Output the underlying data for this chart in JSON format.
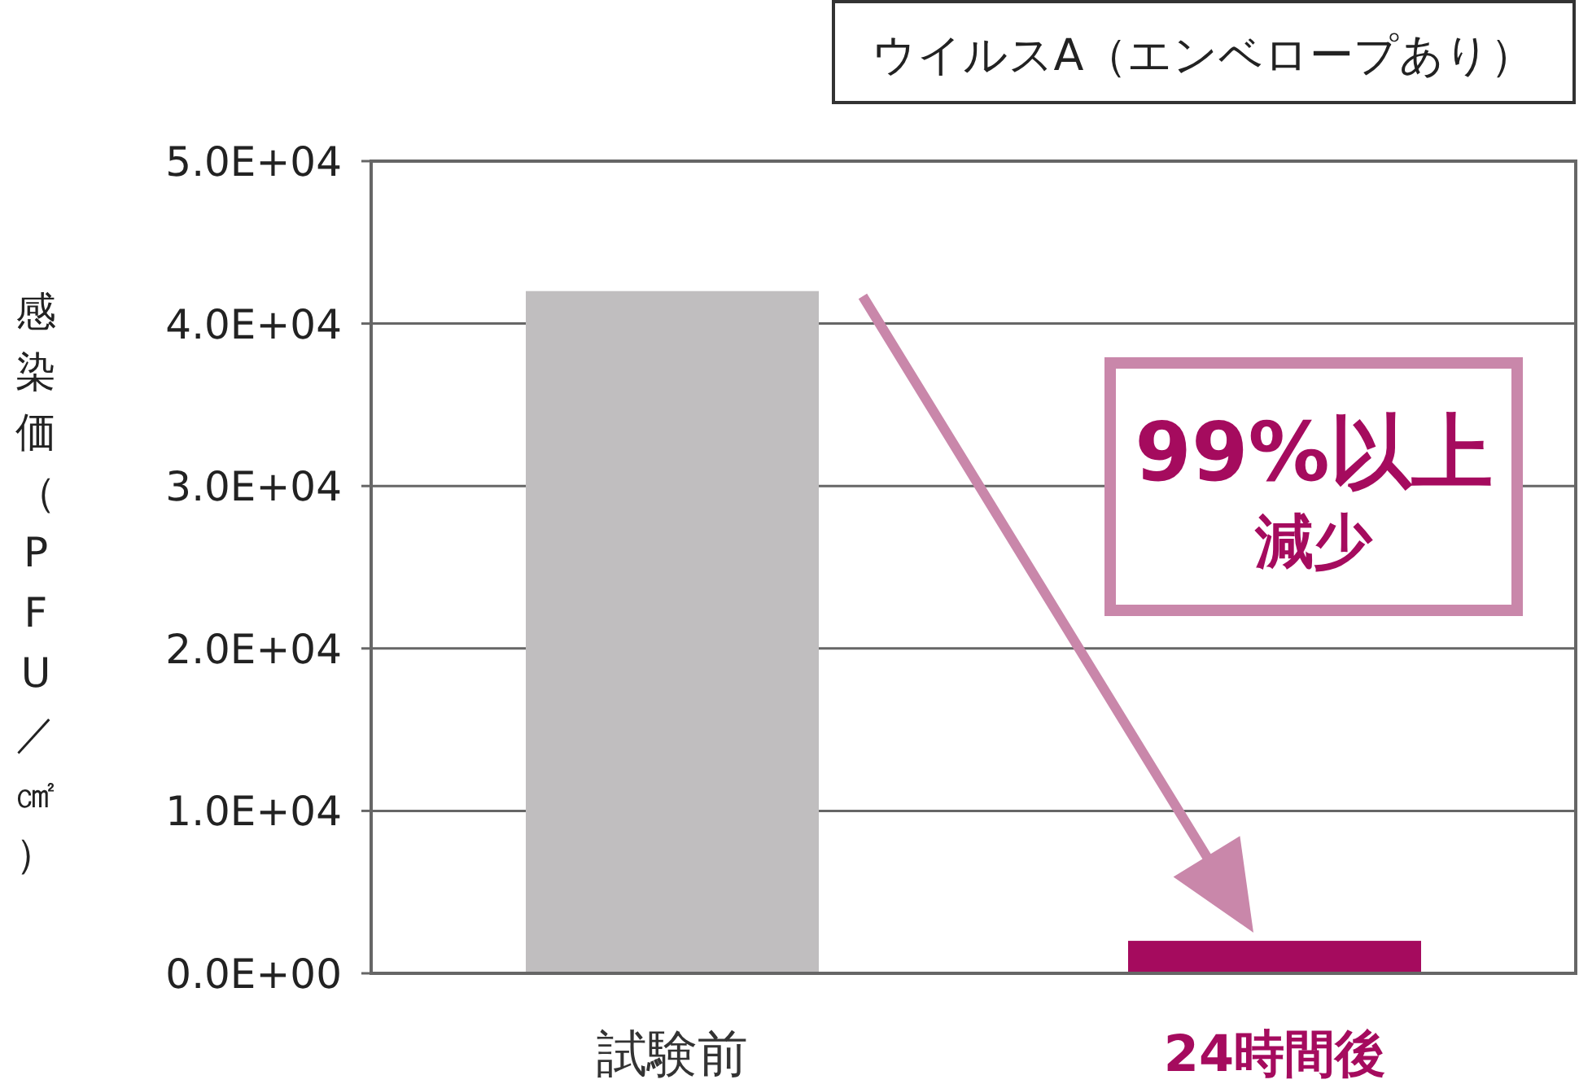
{
  "chart_data": {
    "type": "bar",
    "title": "ウイルスA（エンベロープあり）",
    "ylabel": "感染価（PFU／㎠）",
    "categories": [
      "試験前",
      "24時間後"
    ],
    "values": [
      42000,
      2000
    ],
    "colors": [
      "#c0bebf",
      "#a50b5e"
    ],
    "ylim": [
      0,
      50000
    ],
    "yticks": [
      {
        "value": 0,
        "label": "0.0E+00"
      },
      {
        "value": 10000,
        "label": "1.0E+04"
      },
      {
        "value": 20000,
        "label": "2.0E+04"
      },
      {
        "value": 30000,
        "label": "3.0E+04"
      },
      {
        "value": 40000,
        "label": "4.0E+04"
      },
      {
        "value": 50000,
        "label": "5.0E+04"
      }
    ],
    "grid": "y",
    "annotations": [
      "99%以上",
      "減少"
    ]
  }
}
